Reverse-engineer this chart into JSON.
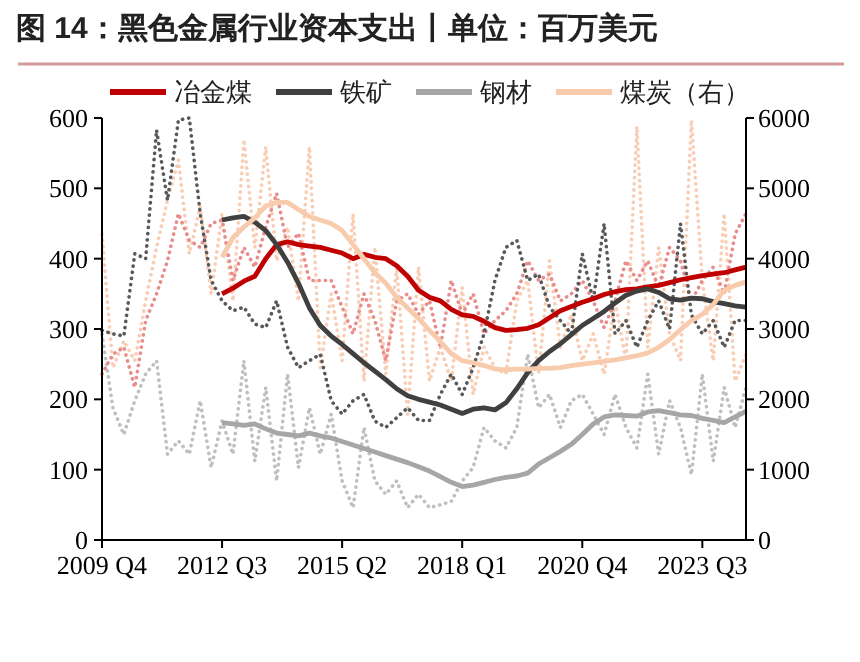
{
  "chart_data": {
    "type": "line",
    "title": "图 14：黑色金属行业资本支出丨单位：百万美元",
    "categories": [
      "2009 Q4",
      null,
      null,
      null,
      null,
      null,
      null,
      null,
      null,
      null,
      null,
      "2012 Q3",
      null,
      null,
      null,
      null,
      null,
      null,
      null,
      null,
      null,
      null,
      "2015 Q2",
      null,
      null,
      null,
      null,
      null,
      null,
      null,
      null,
      null,
      null,
      "2018 Q1",
      null,
      null,
      null,
      null,
      null,
      null,
      null,
      null,
      null,
      null,
      "2020 Q4",
      null,
      null,
      null,
      null,
      null,
      null,
      null,
      null,
      null,
      null,
      "2023 Q3",
      null,
      null,
      null,
      null
    ],
    "ylim": [
      0,
      600
    ],
    "yticks": [
      0,
      100,
      200,
      300,
      400,
      500,
      600
    ],
    "y2lim": [
      0,
      6000
    ],
    "y2ticks": [
      0,
      1000,
      2000,
      3000,
      4000,
      5000,
      6000
    ],
    "legend": "top",
    "grid": false,
    "series": [
      {
        "color": "#f9cdb4",
        "axis": "y2",
        "line_style": "dotted",
        "values": [
          4350,
          2450,
          2830,
          2550,
          3400,
          4160,
          4830,
          5400,
          4070,
          4740,
          3500,
          4640,
          3400,
          5690,
          4160,
          5590,
          3970,
          4450,
          3400,
          5590,
          2450,
          3500,
          2550,
          4640,
          2260,
          4160,
          2360,
          3880,
          1790,
          3880,
          2260,
          2740,
          2260,
          3590,
          2070,
          2740,
          2450,
          2360,
          3400,
          3690,
          2360,
          3970,
          2740,
          3210,
          2550,
          2930,
          2360,
          3400,
          2550,
          5880,
          2740,
          4160,
          2930,
          2550,
          5970,
          3690,
          2550,
          4640,
          2260,
          2640
        ]
      },
      {
        "color": "#bfbfbf",
        "line_style": "dotted",
        "values": [
          293,
          188,
          150,
          198,
          236,
          255,
          122,
          141,
          122,
          198,
          103,
          169,
          122,
          255,
          112,
          217,
          84,
          236,
          103,
          188,
          122,
          179,
          84,
          46,
          160,
          84,
          65,
          84,
          46,
          65,
          46,
          50,
          55,
          84,
          103,
          160,
          141,
          131,
          160,
          264,
          188,
          207,
          160,
          198,
          207,
          179,
          150,
          207,
          160,
          131,
          236,
          122,
          198,
          160,
          93,
          236,
          112,
          217,
          160,
          217
        ]
      },
      {
        "color": "#e98c8c",
        "line_style": "dotted",
        "values": [
          236,
          264,
          274,
          217,
          312,
          350,
          397,
          464,
          426,
          416,
          450,
          455,
          369,
          416,
          388,
          445,
          493,
          416,
          436,
          369,
          369,
          369,
          331,
          293,
          350,
          312,
          255,
          340,
          350,
          321,
          340,
          274,
          369,
          321,
          350,
          293,
          312,
          326,
          350,
          397,
          369,
          378,
          340,
          350,
          369,
          340,
          302,
          340,
          397,
          369,
          397,
          359,
          416,
          397,
          340,
          369,
          388,
          350,
          435,
          464
        ]
      },
      {
        "color": "#595959",
        "line_style": "dotted",
        "values": [
          298,
          293,
          290,
          407,
          400,
          583,
          483,
          597,
          600,
          464,
          369,
          340,
          326,
          331,
          307,
          302,
          340,
          274,
          245,
          255,
          264,
          198,
          179,
          198,
          207,
          169,
          160,
          174,
          188,
          170,
          170,
          207,
          236,
          207,
          245,
          293,
          369,
          416,
          426,
          369,
          378,
          331,
          312,
          293,
          407,
          340,
          450,
          293,
          312,
          274,
          312,
          340,
          300,
          450,
          320,
          293,
          312,
          274,
          312,
          312
        ]
      },
      {
        "name": "冶金煤",
        "color": "#c00000",
        "line_style": "solid",
        "values": [
          null,
          null,
          null,
          null,
          null,
          null,
          null,
          null,
          null,
          null,
          null,
          350,
          358,
          368,
          375,
          400,
          420,
          424,
          420,
          418,
          416,
          412,
          408,
          400,
          406,
          402,
          400,
          390,
          375,
          355,
          345,
          340,
          328,
          320,
          318,
          311,
          302,
          298,
          299,
          301,
          306,
          316,
          326,
          332,
          338,
          343,
          349,
          353,
          356,
          357,
          360,
          362,
          366,
          370,
          373,
          376,
          378,
          380,
          384,
          388
        ]
      },
      {
        "name": "铁矿",
        "color": "#404040",
        "line_style": "solid",
        "values": [
          null,
          null,
          null,
          null,
          null,
          null,
          null,
          null,
          null,
          null,
          null,
          455,
          458,
          460,
          452,
          440,
          420,
          395,
          365,
          330,
          305,
          290,
          278,
          265,
          252,
          240,
          228,
          215,
          205,
          200,
          196,
          192,
          186,
          180,
          186,
          188,
          185,
          195,
          215,
          238,
          255,
          268,
          279,
          292,
          305,
          315,
          325,
          337,
          348,
          354,
          357,
          352,
          343,
          341,
          344,
          343,
          339,
          336,
          333,
          331
        ]
      },
      {
        "name": "钢材",
        "color": "#a6a6a6",
        "line_style": "solid",
        "values": [
          null,
          null,
          null,
          null,
          null,
          null,
          null,
          null,
          null,
          null,
          null,
          167,
          165,
          163,
          165,
          158,
          152,
          150,
          148,
          152,
          148,
          145,
          140,
          135,
          130,
          125,
          120,
          115,
          110,
          104,
          98,
          90,
          82,
          76,
          78,
          82,
          86,
          89,
          91,
          95,
          108,
          117,
          126,
          136,
          150,
          165,
          175,
          178,
          177,
          176,
          182,
          184,
          181,
          178,
          177,
          173,
          170,
          167,
          175,
          183
        ]
      },
      {
        "name": "煤炭（右）",
        "color": "#f8cbad",
        "axis": "y2",
        "line_style": "solid",
        "values": [
          null,
          null,
          null,
          null,
          null,
          null,
          null,
          null,
          null,
          null,
          null,
          4020,
          4300,
          4450,
          4580,
          4750,
          4800,
          4800,
          4700,
          4600,
          4550,
          4500,
          4400,
          4200,
          4000,
          3800,
          3650,
          3450,
          3300,
          3150,
          2980,
          2820,
          2650,
          2550,
          2520,
          2480,
          2430,
          2420,
          2430,
          2430,
          2440,
          2440,
          2450,
          2480,
          2500,
          2520,
          2540,
          2560,
          2590,
          2620,
          2660,
          2740,
          2850,
          2990,
          3120,
          3210,
          3350,
          3550,
          3620,
          3670
        ]
      }
    ]
  }
}
